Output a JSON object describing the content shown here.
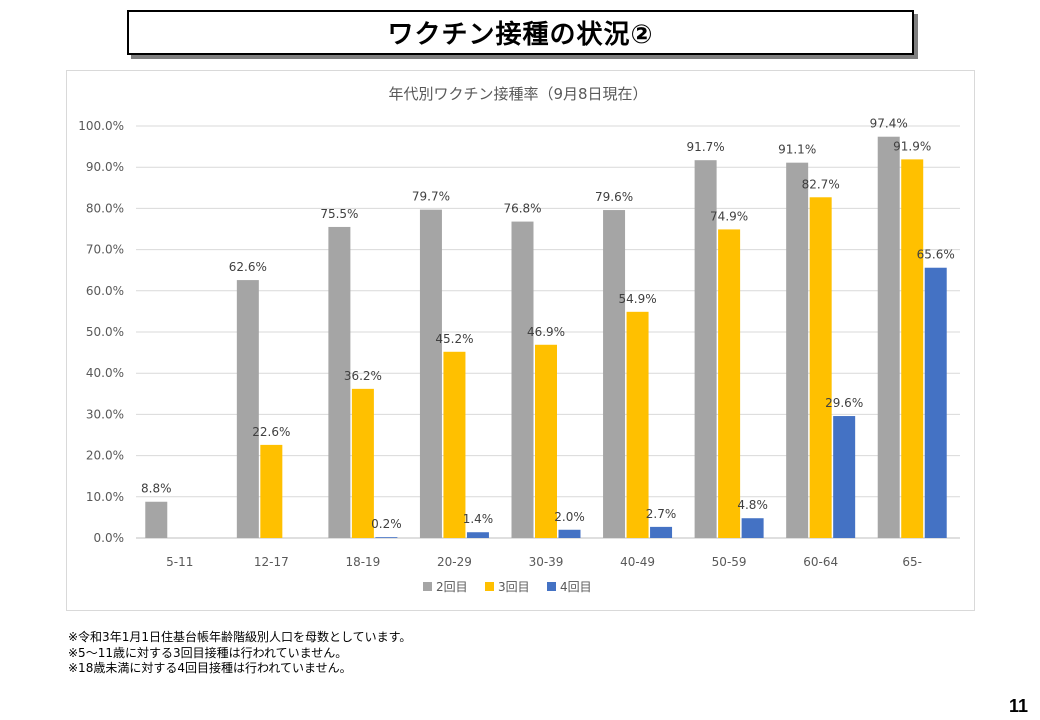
{
  "slide": {
    "title": "ワクチン接種の状況②",
    "notes": [
      "※令和3年1月1日住基台帳年齢階級別人口を母数としています。",
      "※5～11歳に対する3回目接種は行われていません。",
      "※18歳未満に対する4回目接種は行われていません。"
    ],
    "page_number": "11"
  },
  "chart_data": {
    "type": "bar",
    "title": "年代別ワクチン接種率（9月8日現在）",
    "xlabel": "",
    "ylabel": "",
    "categories": [
      "5-11",
      "12-17",
      "18-19",
      "20-29",
      "30-39",
      "40-49",
      "50-59",
      "60-64",
      "65-"
    ],
    "ylim": [
      0,
      100
    ],
    "yticks": [
      0,
      10,
      20,
      30,
      40,
      50,
      60,
      70,
      80,
      90,
      100
    ],
    "ytick_labels": [
      "0.0%",
      "10.0%",
      "20.0%",
      "30.0%",
      "40.0%",
      "50.0%",
      "60.0%",
      "70.0%",
      "80.0%",
      "90.0%",
      "100.0%"
    ],
    "grid": true,
    "legend_position": "bottom",
    "series": [
      {
        "name": "2回目",
        "color": "#a5a5a5",
        "values": [
          8.8,
          62.6,
          75.5,
          79.7,
          76.8,
          79.6,
          91.7,
          91.1,
          97.4
        ],
        "labels": [
          "8.8%",
          "62.6%",
          "75.5%",
          "79.7%",
          "76.8%",
          "79.6%",
          "91.7%",
          "91.1%",
          "97.4%"
        ]
      },
      {
        "name": "3回目",
        "color": "#ffc000",
        "values": [
          null,
          22.6,
          36.2,
          45.2,
          46.9,
          54.9,
          74.9,
          82.7,
          91.9
        ],
        "labels": [
          null,
          "22.6%",
          "36.2%",
          "45.2%",
          "46.9%",
          "54.9%",
          "74.9%",
          "82.7%",
          "91.9%"
        ]
      },
      {
        "name": "4回目",
        "color": "#4472c4",
        "values": [
          null,
          null,
          0.2,
          1.4,
          2.0,
          2.7,
          4.8,
          29.6,
          65.6
        ],
        "labels": [
          null,
          null,
          "0.2%",
          "1.4%",
          "2.0%",
          "2.7%",
          "4.8%",
          "29.6%",
          "65.6%"
        ]
      }
    ]
  }
}
